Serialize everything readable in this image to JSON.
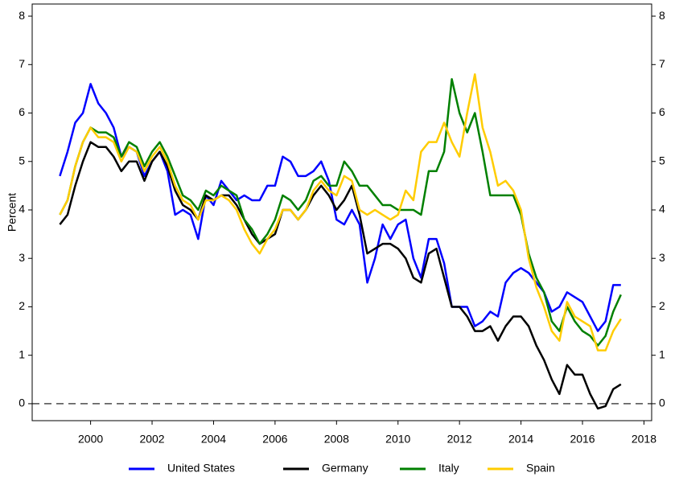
{
  "chart_data": {
    "type": "line",
    "y_label": "Percent",
    "x": [
      1999.0,
      1999.25,
      1999.5,
      1999.75,
      2000.0,
      2000.25,
      2000.5,
      2000.75,
      2001.0,
      2001.25,
      2001.5,
      2001.75,
      2002.0,
      2002.25,
      2002.5,
      2002.75,
      2003.0,
      2003.25,
      2003.5,
      2003.75,
      2004.0,
      2004.25,
      2004.5,
      2004.75,
      2005.0,
      2005.25,
      2005.5,
      2005.75,
      2006.0,
      2006.25,
      2006.5,
      2006.75,
      2007.0,
      2007.25,
      2007.5,
      2007.75,
      2008.0,
      2008.25,
      2008.5,
      2008.75,
      2009.0,
      2009.25,
      2009.5,
      2009.75,
      2010.0,
      2010.25,
      2010.5,
      2010.75,
      2011.0,
      2011.25,
      2011.5,
      2011.75,
      2012.0,
      2012.25,
      2012.5,
      2012.75,
      2013.0,
      2013.25,
      2013.5,
      2013.75,
      2014.0,
      2014.25,
      2014.5,
      2014.75,
      2015.0,
      2015.25,
      2015.5,
      2015.75,
      2016.0,
      2016.25,
      2016.5,
      2016.75,
      2017.0,
      2017.25
    ],
    "series": [
      {
        "name": "United States",
        "color": "#0000ff",
        "values": [
          4.7,
          5.2,
          5.8,
          6.0,
          6.6,
          6.2,
          6.0,
          5.7,
          5.1,
          5.3,
          5.2,
          4.7,
          5.0,
          5.2,
          4.8,
          3.9,
          4.0,
          3.9,
          3.4,
          4.3,
          4.1,
          4.6,
          4.4,
          4.2,
          4.3,
          4.2,
          4.2,
          4.5,
          4.5,
          5.1,
          5.0,
          4.7,
          4.7,
          4.8,
          5.0,
          4.6,
          3.8,
          3.7,
          4.0,
          3.7,
          2.5,
          3.0,
          3.7,
          3.4,
          3.7,
          3.8,
          3.0,
          2.6,
          3.4,
          3.4,
          2.9,
          2.0,
          2.0,
          2.0,
          1.6,
          1.7,
          1.9,
          1.8,
          2.5,
          2.7,
          2.8,
          2.7,
          2.5,
          2.3,
          1.9,
          2.0,
          2.3,
          2.2,
          2.1,
          1.8,
          1.5,
          1.7,
          2.45,
          2.45
        ]
      },
      {
        "name": "Germany",
        "color": "#000000",
        "values": [
          3.7,
          3.9,
          4.5,
          5.0,
          5.4,
          5.3,
          5.3,
          5.1,
          4.8,
          5.0,
          5.0,
          4.6,
          5.0,
          5.2,
          4.9,
          4.4,
          4.1,
          4.0,
          3.8,
          4.3,
          4.2,
          4.3,
          4.3,
          4.1,
          3.8,
          3.5,
          3.3,
          3.4,
          3.5,
          4.0,
          4.0,
          3.8,
          4.0,
          4.3,
          4.5,
          4.3,
          4.0,
          4.2,
          4.5,
          3.9,
          3.1,
          3.2,
          3.3,
          3.3,
          3.2,
          3.0,
          2.6,
          2.5,
          3.1,
          3.2,
          2.6,
          2.0,
          2.0,
          1.8,
          1.5,
          1.5,
          1.6,
          1.3,
          1.6,
          1.8,
          1.8,
          1.6,
          1.2,
          0.9,
          0.5,
          0.2,
          0.8,
          0.6,
          0.6,
          0.2,
          -0.1,
          -0.05,
          0.3,
          0.4
        ]
      },
      {
        "name": "Italy",
        "color": "#008000",
        "values": [
          3.9,
          4.2,
          4.9,
          5.4,
          5.7,
          5.6,
          5.6,
          5.5,
          5.1,
          5.4,
          5.3,
          4.9,
          5.2,
          5.4,
          5.1,
          4.7,
          4.3,
          4.2,
          4.0,
          4.4,
          4.3,
          4.5,
          4.4,
          4.3,
          3.8,
          3.6,
          3.3,
          3.5,
          3.8,
          4.3,
          4.2,
          4.0,
          4.2,
          4.6,
          4.7,
          4.5,
          4.5,
          5.0,
          4.8,
          4.5,
          4.5,
          4.3,
          4.1,
          4.1,
          4.0,
          4.0,
          4.0,
          3.9,
          4.8,
          4.8,
          5.2,
          6.7,
          6.0,
          5.6,
          6.0,
          5.2,
          4.3,
          4.3,
          4.3,
          4.3,
          3.9,
          3.1,
          2.6,
          2.3,
          1.7,
          1.5,
          2.0,
          1.7,
          1.5,
          1.4,
          1.2,
          1.4,
          1.9,
          2.25
        ]
      },
      {
        "name": "Spain",
        "color": "#ffcc00",
        "values": [
          3.9,
          4.2,
          4.9,
          5.4,
          5.7,
          5.5,
          5.5,
          5.4,
          5.0,
          5.3,
          5.2,
          4.8,
          5.1,
          5.3,
          5.0,
          4.5,
          4.2,
          4.1,
          3.8,
          4.2,
          4.2,
          4.3,
          4.2,
          4.0,
          3.6,
          3.3,
          3.1,
          3.4,
          3.6,
          4.0,
          4.0,
          3.8,
          4.0,
          4.4,
          4.6,
          4.4,
          4.3,
          4.7,
          4.6,
          4.0,
          3.9,
          4.0,
          3.9,
          3.8,
          3.9,
          4.4,
          4.2,
          5.2,
          5.4,
          5.4,
          5.8,
          5.4,
          5.1,
          6.0,
          6.8,
          5.7,
          5.2,
          4.5,
          4.6,
          4.4,
          4.0,
          3.0,
          2.4,
          2.0,
          1.5,
          1.3,
          2.1,
          1.8,
          1.7,
          1.6,
          1.1,
          1.1,
          1.5,
          1.75
        ]
      }
    ],
    "reference_line": 0,
    "xlim": [
      1998.1,
      2018.25
    ],
    "xticks": [
      2000,
      2002,
      2004,
      2006,
      2008,
      2010,
      2012,
      2014,
      2016,
      2018
    ],
    "ylim": [
      -0.35,
      8.25
    ],
    "yticks": [
      0,
      1,
      2,
      3,
      4,
      5,
      6,
      7,
      8
    ],
    "legend": "bottom"
  }
}
